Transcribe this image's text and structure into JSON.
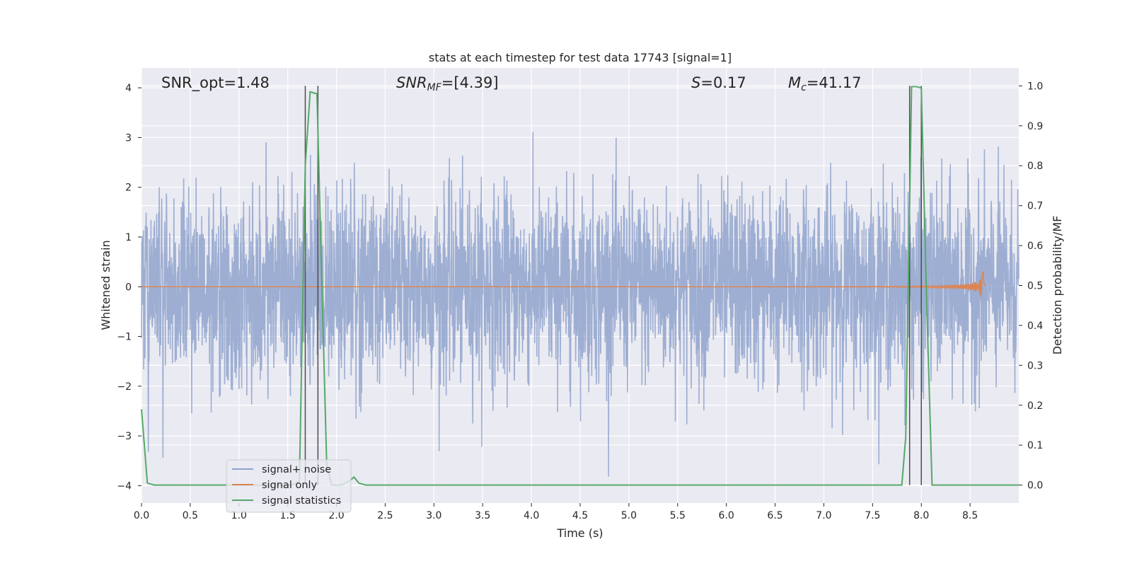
{
  "chart_data": {
    "type": "line",
    "title": "stats at each timestep for test data 17743 [signal=1]",
    "xlabel": "Time (s)",
    "ylabel_left": "Whitened strain",
    "ylabel_right": "Detection probability/MF",
    "xlim": [
      0,
      9.0
    ],
    "ylim_left": [
      -4.35,
      4.4
    ],
    "ylim_right": [
      -0.045,
      1.045
    ],
    "x_ticks": [
      "0.0",
      "0.5",
      "1.0",
      "1.5",
      "2.0",
      "2.5",
      "3.0",
      "3.5",
      "4.0",
      "4.5",
      "5.0",
      "5.5",
      "6.0",
      "6.5",
      "7.0",
      "7.5",
      "8.0",
      "8.5"
    ],
    "x_tick_values": [
      0,
      0.5,
      1.0,
      1.5,
      2.0,
      2.5,
      3.0,
      3.5,
      4.0,
      4.5,
      5.0,
      5.5,
      6.0,
      6.5,
      7.0,
      7.5,
      8.0,
      8.5
    ],
    "y_left_ticks": [
      "4",
      "3",
      "2",
      "1",
      "0",
      "−1",
      "−2",
      "−3",
      "−4"
    ],
    "y_left_tick_values": [
      4,
      3,
      2,
      1,
      0,
      -1,
      -2,
      -3,
      -4
    ],
    "y_right_ticks": [
      "1.0",
      "0.9",
      "0.8",
      "0.7",
      "0.6",
      "0.5",
      "0.4",
      "0.3",
      "0.2",
      "0.1",
      "0.0"
    ],
    "y_right_tick_values": [
      1.0,
      0.9,
      0.8,
      0.7,
      0.6,
      0.5,
      0.4,
      0.3,
      0.2,
      0.1,
      0.0
    ],
    "grid": true,
    "legend_position": "lower-left",
    "annotations": {
      "snr_opt": "SNR_opt=1.48",
      "snr_mf_prefix": "SNR",
      "snr_mf_sub": "MF",
      "snr_mf_value": "=[4.39]",
      "s_symbol": "S",
      "s_value": "=0.17",
      "mc_symbol": "M",
      "mc_sub": "c",
      "mc_value": "=41.17"
    },
    "series": [
      {
        "name": "signal+ noise",
        "axis": "left",
        "color": "#8fa3cc",
        "x_range": [
          0,
          9.0
        ],
        "typical_amplitude": 1.6,
        "peak_max": 4.0,
        "peak_min": -3.95
      },
      {
        "name": "signal only",
        "axis": "left",
        "color": "#dd8452",
        "x_range": [
          0,
          8.66
        ],
        "peak_time": 8.64,
        "peak_amplitude": 0.45
      },
      {
        "name": "signal statistics",
        "axis": "right",
        "color": "#55a868",
        "x": [
          0,
          0.06,
          0.13,
          0.2,
          1.55,
          1.62,
          1.68,
          1.73,
          1.8,
          1.84,
          1.9,
          1.95,
          2.05,
          2.13,
          2.18,
          2.23,
          2.3,
          7.8,
          7.84,
          7.9,
          7.95,
          8.0,
          8.05,
          8.11,
          9.0
        ],
        "values": [
          0.19,
          0.005,
          0.0,
          0.0,
          0.0,
          0.01,
          0.8,
          0.985,
          0.98,
          0.6,
          0.05,
          0.0,
          0.0,
          0.01,
          0.02,
          0.005,
          0.0,
          0.0,
          0.12,
          0.998,
          0.998,
          0.995,
          0.5,
          0.0,
          0.0
        ]
      }
    ],
    "vertical_markers": [
      1.68,
      1.81,
      7.88,
      8.0
    ]
  },
  "colors": {
    "plot_bg": "#eaeaf2",
    "grid": "#ffffff",
    "marker_line": "#4d4d4d"
  }
}
